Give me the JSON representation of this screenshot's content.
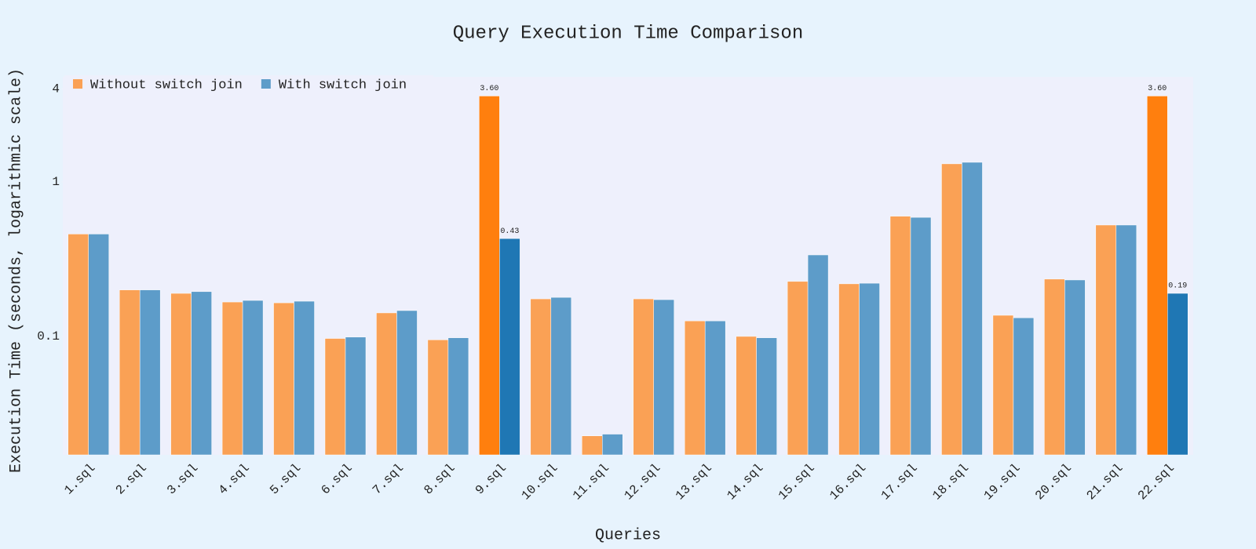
{
  "chart_data": {
    "type": "bar",
    "title": "Query Execution Time Comparison",
    "x_label": "Queries",
    "y_label": "Execution Time (seconds, logarithmic scale)",
    "categories": [
      "1.sql",
      "2.sql",
      "3.sql",
      "4.sql",
      "5.sql",
      "6.sql",
      "7.sql",
      "8.sql",
      "9.sql",
      "10.sql",
      "11.sql",
      "12.sql",
      "13.sql",
      "14.sql",
      "15.sql",
      "16.sql",
      "17.sql",
      "18.sql",
      "19.sql",
      "20.sql",
      "21.sql",
      "22.sql"
    ],
    "series": [
      {
        "name": "Without switch join",
        "color": "#ff7f0e",
        "values": [
          0.46,
          0.2,
          0.19,
          0.167,
          0.165,
          0.097,
          0.142,
          0.095,
          3.6,
          0.175,
          0.0227,
          0.175,
          0.126,
          0.1,
          0.227,
          0.219,
          0.6,
          1.31,
          0.137,
          0.235,
          0.526,
          3.6
        ],
        "value_labels": [
          null,
          null,
          null,
          null,
          null,
          null,
          null,
          null,
          "3.60",
          null,
          null,
          null,
          null,
          null,
          null,
          null,
          null,
          null,
          null,
          null,
          null,
          "3.60"
        ]
      },
      {
        "name": "With switch join",
        "color": "#1f77b4",
        "values": [
          0.46,
          0.2,
          0.195,
          0.171,
          0.169,
          0.099,
          0.147,
          0.098,
          0.43,
          0.179,
          0.0233,
          0.173,
          0.126,
          0.098,
          0.337,
          0.221,
          0.59,
          1.34,
          0.132,
          0.232,
          0.526,
          0.19
        ],
        "value_labels": [
          null,
          null,
          null,
          null,
          null,
          null,
          null,
          null,
          "0.43",
          null,
          null,
          null,
          null,
          null,
          null,
          null,
          null,
          null,
          null,
          null,
          null,
          "0.19"
        ]
      }
    ],
    "log_y": true,
    "ylim": [
      0.0171,
      4.79
    ],
    "yticks": [
      0.1,
      1,
      4
    ],
    "legend": "top-left"
  }
}
